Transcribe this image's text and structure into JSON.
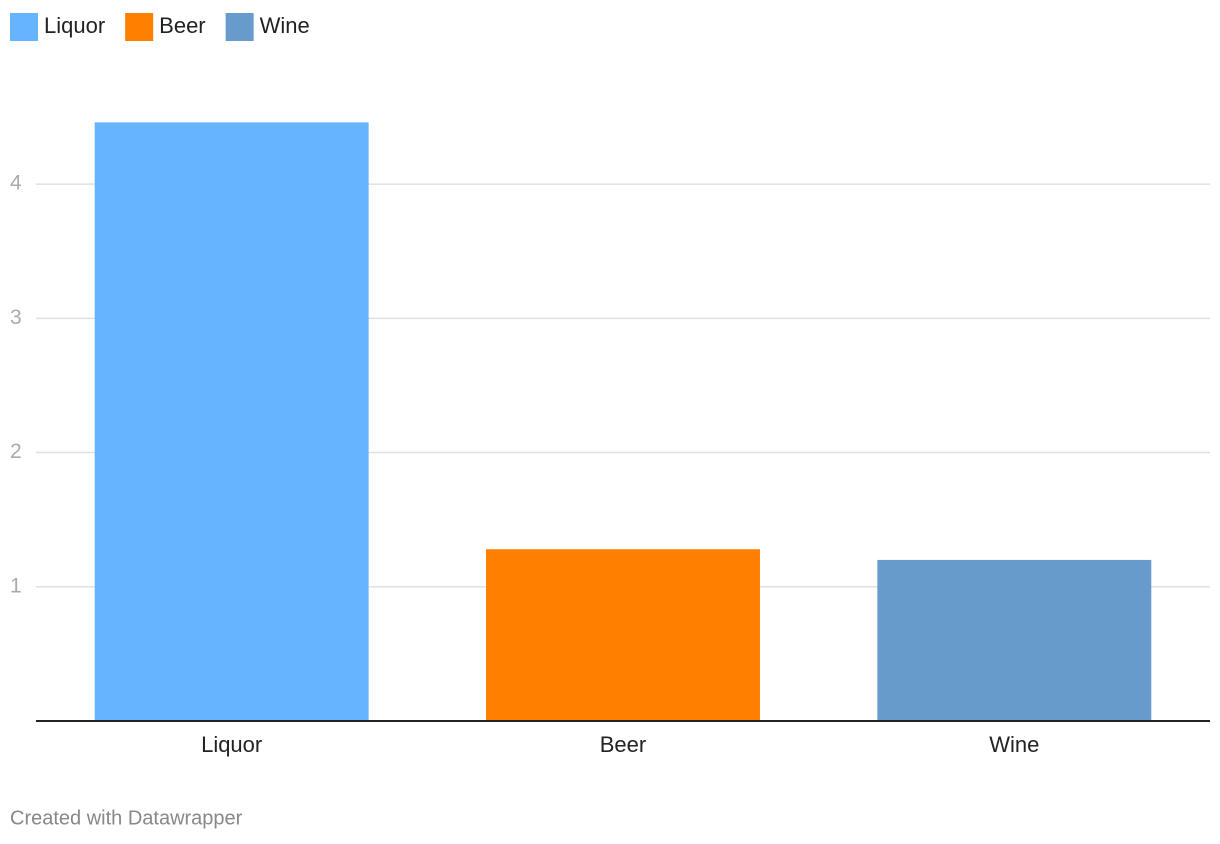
{
  "chart_data": {
    "type": "bar",
    "categories": [
      "Liquor",
      "Beer",
      "Wine"
    ],
    "series": [
      {
        "name": "Liquor",
        "color": "#66b4ff",
        "values": [
          4.46,
          null,
          null
        ]
      },
      {
        "name": "Beer",
        "color": "#ff7f00",
        "values": [
          null,
          1.28,
          null
        ]
      },
      {
        "name": "Wine",
        "color": "#669bcb",
        "values": [
          null,
          null,
          1.2
        ]
      }
    ],
    "ylim": [
      0,
      4.5
    ],
    "yticks": [
      1,
      2,
      3,
      4
    ],
    "grid": true,
    "credit": "Created with Datawrapper"
  }
}
